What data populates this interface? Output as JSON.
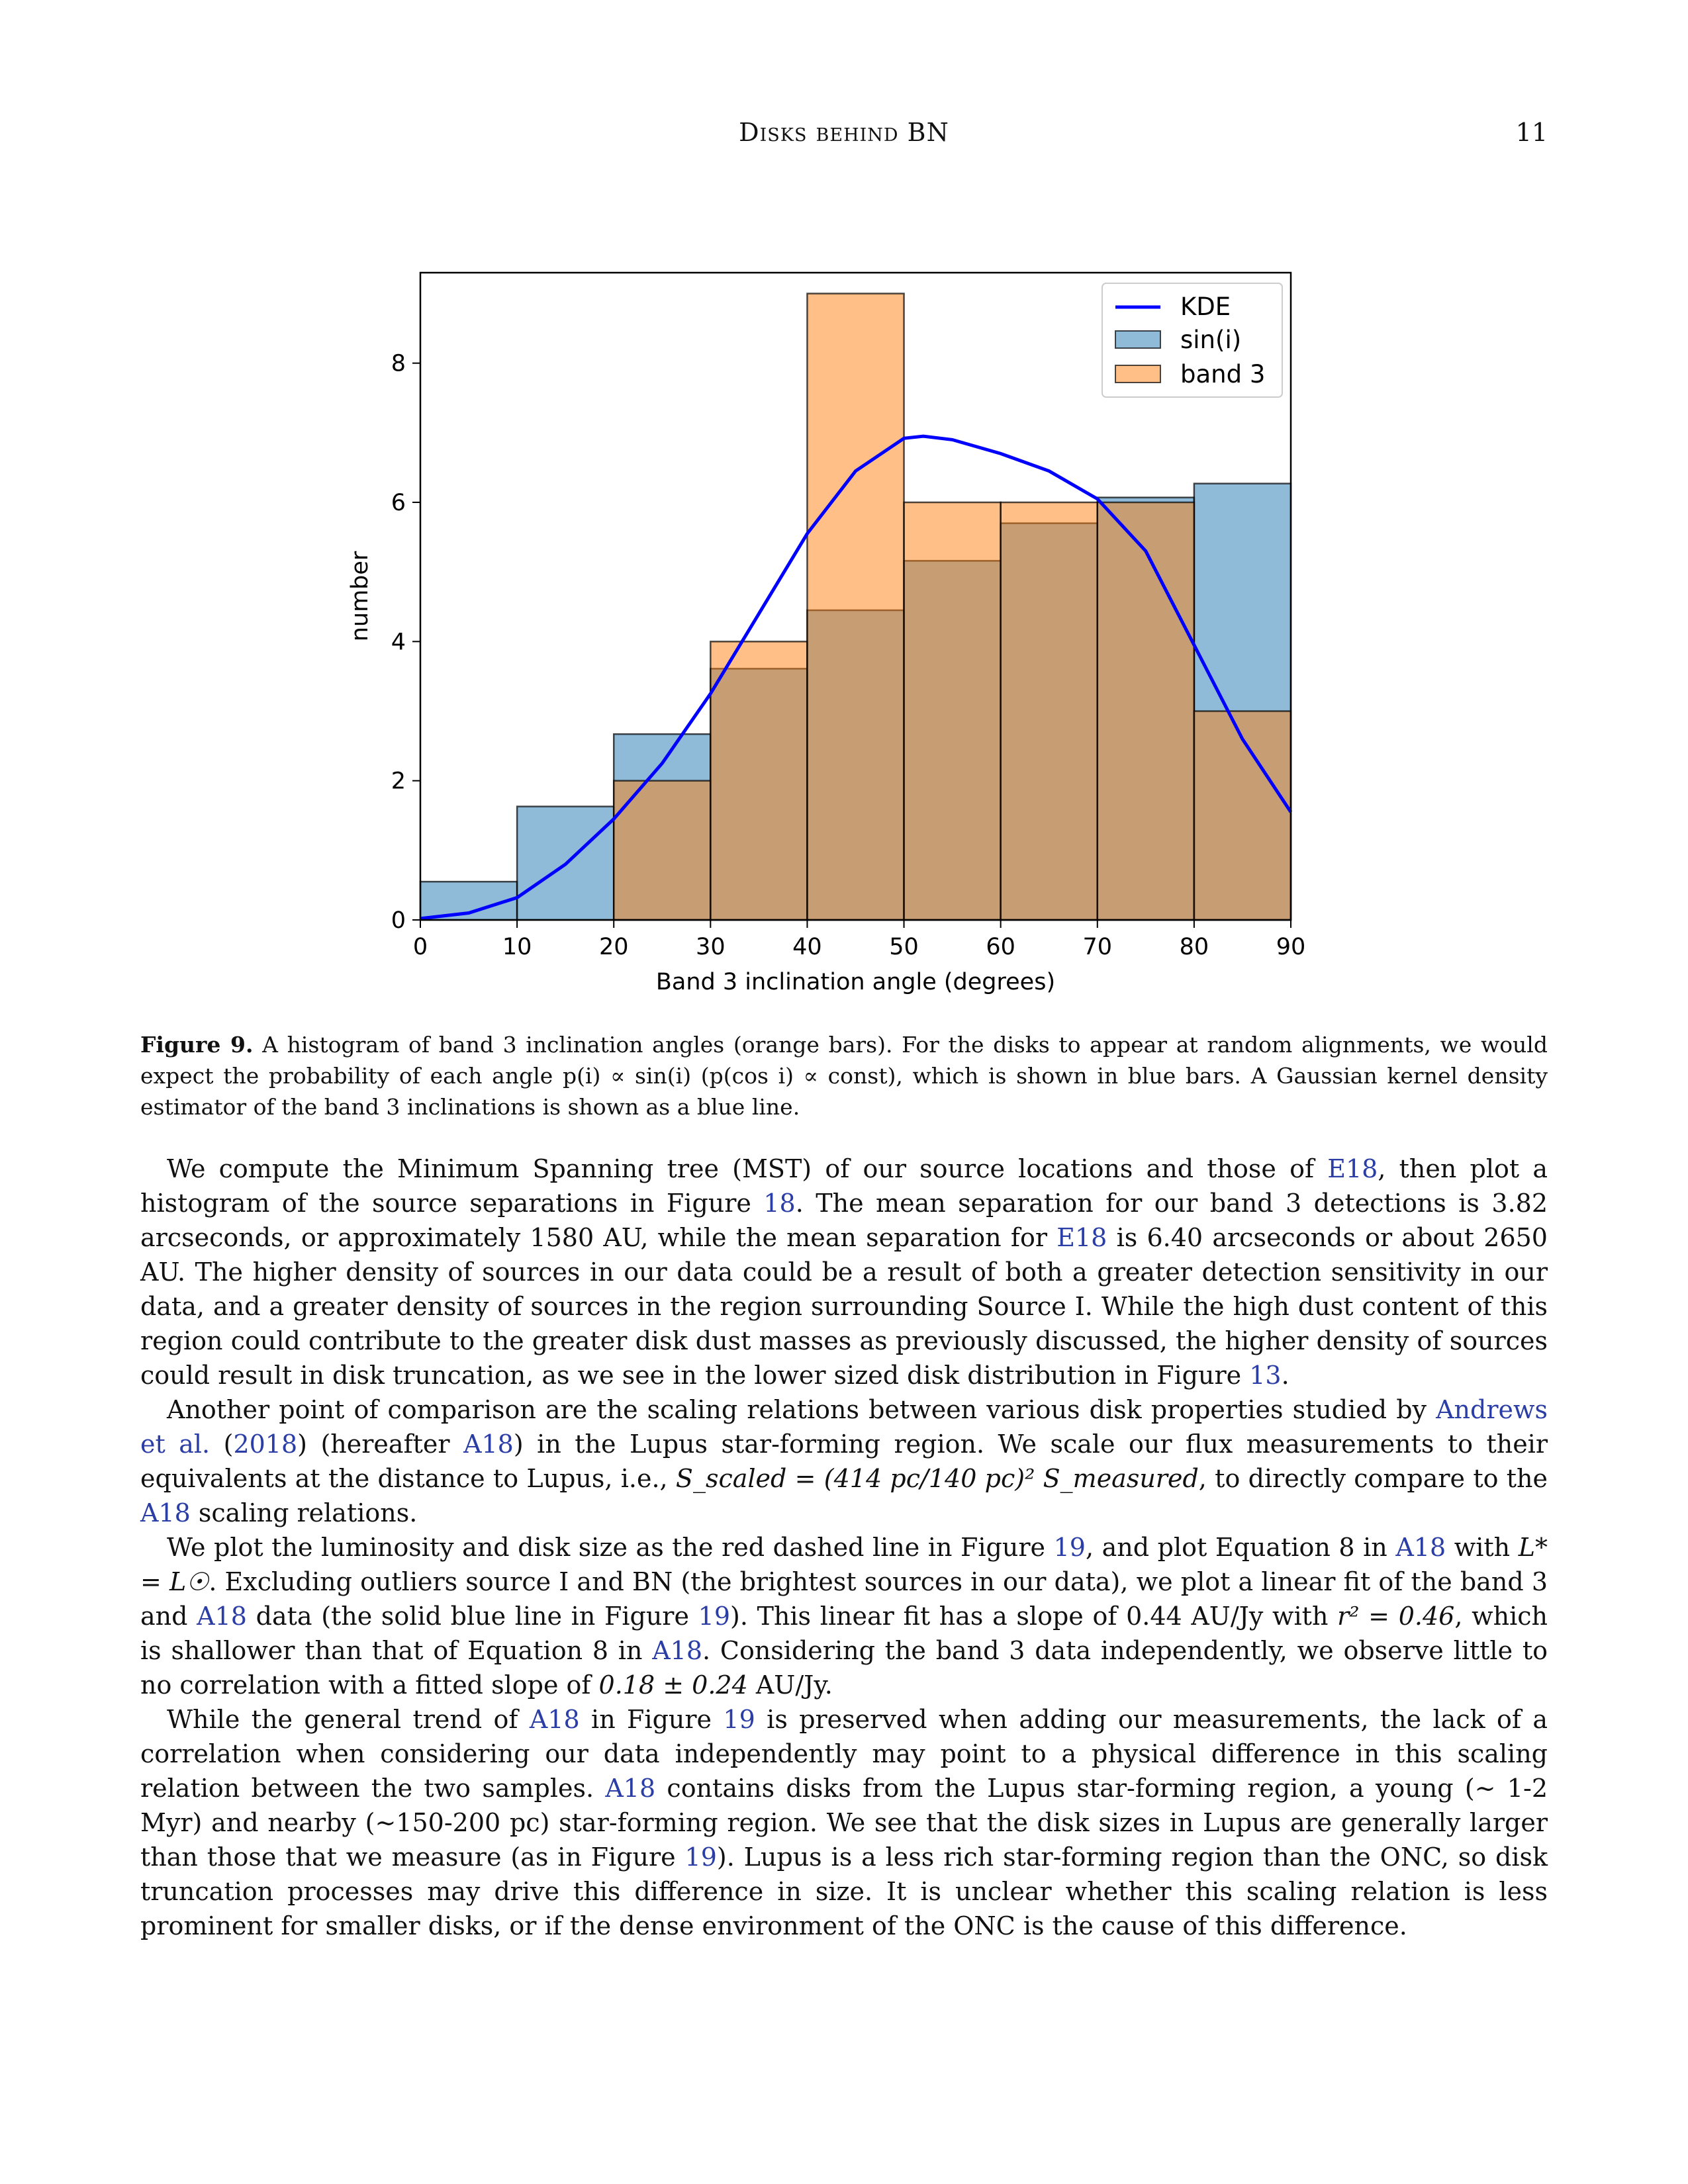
{
  "header": {
    "running_title": "Disks behind BN",
    "page_number": "11"
  },
  "chart_data": {
    "type": "bar",
    "xlabel": "Band 3 inclination angle (degrees)",
    "ylabel": "number",
    "xlim": [
      0,
      90
    ],
    "ylim": [
      0,
      9.3
    ],
    "xticks": [
      "0",
      "10",
      "20",
      "30",
      "40",
      "50",
      "60",
      "70",
      "80",
      "90"
    ],
    "yticks": [
      "0",
      "2",
      "4",
      "6",
      "8"
    ],
    "bin_edges": [
      0,
      10,
      20,
      30,
      40,
      50,
      60,
      70,
      80,
      90
    ],
    "series": [
      {
        "name": "sin(i)",
        "color": "#1f77b4",
        "values": [
          0.55,
          1.63,
          2.67,
          3.61,
          4.45,
          5.16,
          5.7,
          6.07,
          6.27
        ]
      },
      {
        "name": "band 3",
        "color": "#ff7f0e",
        "values": [
          0,
          0,
          2,
          4,
          9,
          6,
          6,
          6,
          3
        ]
      }
    ],
    "kde": {
      "name": "KDE",
      "color": "#0000ff",
      "x": [
        0,
        5,
        10,
        15,
        20,
        25,
        30,
        35,
        40,
        45,
        50,
        52,
        55,
        60,
        65,
        70,
        75,
        80,
        85,
        90
      ],
      "y": [
        0.02,
        0.1,
        0.32,
        0.8,
        1.45,
        2.25,
        3.25,
        4.4,
        5.55,
        6.45,
        6.92,
        6.95,
        6.9,
        6.7,
        6.45,
        6.05,
        5.3,
        3.95,
        2.6,
        1.55
      ]
    },
    "legend": {
      "position": "top-right",
      "entries": [
        "KDE",
        "sin(i)",
        "band 3"
      ]
    },
    "grid": false
  },
  "figure": {
    "caption_label": "Figure 9.",
    "caption_text": "A histogram of band 3 inclination angles (orange bars). For the disks to appear at random alignments, we would expect the probability of each angle p(i) ∝ sin(i) (p(cos i) ∝ const), which is shown in blue bars. A Gaussian kernel density estimator of the band 3 inclinations is shown as a blue line."
  },
  "body": {
    "p1": {
      "t1": "We compute the Minimum Spanning tree (MST) of our source locations and those of ",
      "r1": "E18",
      "t2": ", then plot a histogram of the source separations in Figure ",
      "r2": "18",
      "t3": ". The mean separation for our band 3 detections is 3.82 arcseconds, or approximately 1580 AU, while the mean separation for ",
      "r3": "E18",
      "t4": " is 6.40 arcseconds or about 2650 AU. The higher density of sources in our data could be a result of both a greater detection sensitivity in our data, and a greater density of sources in the region surrounding Source I. While the high dust content of this region could contribute to the greater disk dust masses as previously discussed, the higher density of sources could result in disk truncation, as we see in the lower sized disk distribution in Figure ",
      "r4": "13",
      "t5": "."
    },
    "p2": {
      "t1": "Another point of comparison are the scaling relations between various disk properties studied by ",
      "r1": "Andrews et al.",
      "t2": " (",
      "r2": "2018",
      "t3": ") (hereafter ",
      "r3": "A18",
      "t4": ") in the Lupus star-forming region. We scale our flux measurements to their equivalents at the distance to Lupus, i.e., ",
      "m1": "S_scaled = (414 pc/140 pc)² S_measured",
      "t5": ", to directly compare to the ",
      "r4": "A18",
      "t6": " scaling relations."
    },
    "p3": {
      "t1": "We plot the luminosity and disk size as the red dashed line in Figure ",
      "r1": "19",
      "t2": ", and plot Equation 8 in ",
      "r2": "A18",
      "t3": " with ",
      "m1": "L* = L☉",
      "t4": ". Excluding outliers source I and BN (the brightest sources in our data), we plot a linear fit of the band 3 and ",
      "r3": "A18",
      "t5": " data (the solid blue line in Figure ",
      "r4": "19",
      "t6": "). This linear fit has a slope of 0.44 AU/Jy with ",
      "m2": "r² = 0.46",
      "t7": ", which is shallower than that of Equation 8 in ",
      "r5": "A18",
      "t8": ". Considering the band 3 data independently, we observe little to no correlation with a fitted slope of ",
      "m3": "0.18 ± 0.24",
      "t9": " AU/Jy."
    },
    "p4": {
      "t1": "While the general trend of ",
      "r1": "A18",
      "t2": " in Figure ",
      "r2": "19",
      "t3": " is preserved when adding our measurements, the lack of a correlation when considering our data independently may point to a physical difference in this scaling relation between the two samples. ",
      "r3": "A18",
      "t4": " contains disks from the Lupus star-forming region, a young (∼ 1-2 Myr) and nearby (∼150-200 pc) star-forming region. We see that the disk sizes in Lupus are generally larger than those that we measure (as in Figure ",
      "r4": "19",
      "t5": "). Lupus is a less rich star-forming region than the ONC, so disk truncation processes may drive this difference in size. It is unclear whether this scaling relation is less prominent for smaller disks, or if the dense environment of the ONC is the cause of this difference."
    }
  }
}
